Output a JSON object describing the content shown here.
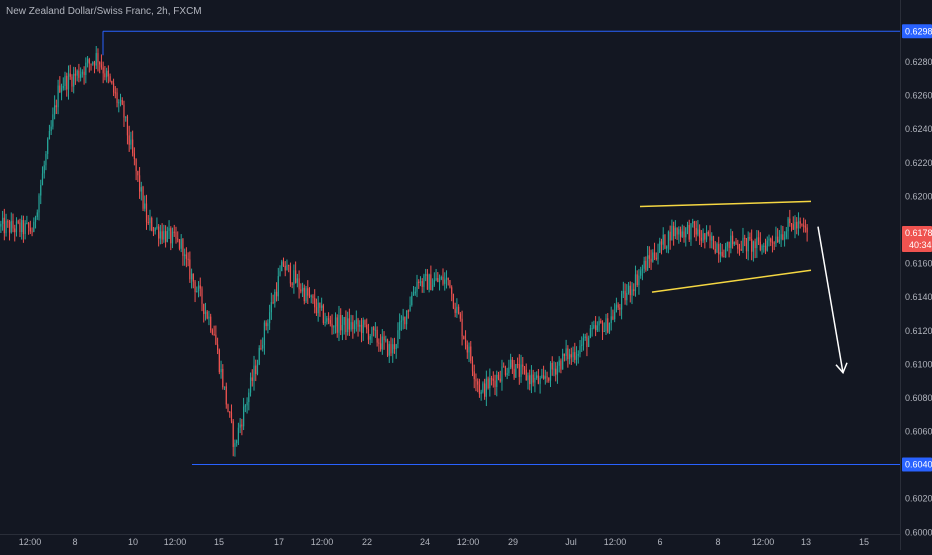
{
  "header": {
    "title": "New Zealand Dollar/Swiss Franc, 2h, FXCM"
  },
  "colors": {
    "background": "#131722",
    "bull": "#26a69a",
    "bear": "#ef5350",
    "horizontal_line": "#2962ff",
    "channel": "#f5d742",
    "arrow": "#ffffff",
    "axis_text": "#b2b5be",
    "level_tag": "#2962ff",
    "current_tag": "#ef5350"
  },
  "chart_data": {
    "type": "candlestick",
    "symbol": "New Zealand Dollar/Swiss Franc",
    "interval": "2h",
    "source": "FXCM",
    "x_tick_labels": [
      "12:00",
      "8",
      "10",
      "12:00",
      "15",
      "17",
      "12:00",
      "22",
      "24",
      "12:00",
      "29",
      "Jul",
      "12:00",
      "6",
      "8",
      "12:00",
      "13",
      "15"
    ],
    "y_tick_labels": [
      "0.62800",
      "0.62600",
      "0.62400",
      "0.62200",
      "0.62000",
      "0.61600",
      "0.61400",
      "0.61200",
      "0.61000",
      "0.60800",
      "0.60600",
      "0.60200",
      "0.60000"
    ],
    "ylim": [
      0.5999,
      0.6305
    ],
    "current_price": "0.61782",
    "countdown": "40:34",
    "horizontal_levels": [
      {
        "label": "0.62983",
        "value": 0.62983
      },
      {
        "label": "0.60404",
        "value": 0.60404
      }
    ],
    "channel": {
      "upper": [
        [
          0.6194,
          0.6197
        ]
      ],
      "lower": [
        [
          0.6143,
          0.6156
        ]
      ]
    },
    "projected_move": {
      "from": 0.6182,
      "to": 0.6095
    },
    "segments": [
      {
        "bars": 20,
        "end": 0.618
      },
      {
        "bars": 14,
        "end": 0.6262
      },
      {
        "bars": 10,
        "end": 0.6272
      },
      {
        "bars": 12,
        "end": 0.6283
      },
      {
        "bars": 16,
        "end": 0.6248
      },
      {
        "bars": 14,
        "end": 0.6182
      },
      {
        "bars": 20,
        "end": 0.617
      },
      {
        "bars": 18,
        "end": 0.612
      },
      {
        "bars": 12,
        "end": 0.605
      },
      {
        "bars": 14,
        "end": 0.6106
      },
      {
        "bars": 14,
        "end": 0.616
      },
      {
        "bars": 24,
        "end": 0.6127
      },
      {
        "bars": 20,
        "end": 0.6122
      },
      {
        "bars": 18,
        "end": 0.6108
      },
      {
        "bars": 16,
        "end": 0.6152
      },
      {
        "bars": 18,
        "end": 0.615
      },
      {
        "bars": 18,
        "end": 0.6082
      },
      {
        "bars": 18,
        "end": 0.6102
      },
      {
        "bars": 18,
        "end": 0.6088
      },
      {
        "bars": 14,
        "end": 0.6106
      },
      {
        "bars": 20,
        "end": 0.6124
      },
      {
        "bars": 22,
        "end": 0.6155
      },
      {
        "bars": 16,
        "end": 0.6176
      },
      {
        "bars": 16,
        "end": 0.618
      },
      {
        "bars": 18,
        "end": 0.6168
      },
      {
        "bars": 20,
        "end": 0.617
      },
      {
        "bars": 16,
        "end": 0.6182
      },
      {
        "bars": 10,
        "end": 0.6179
      }
    ]
  }
}
